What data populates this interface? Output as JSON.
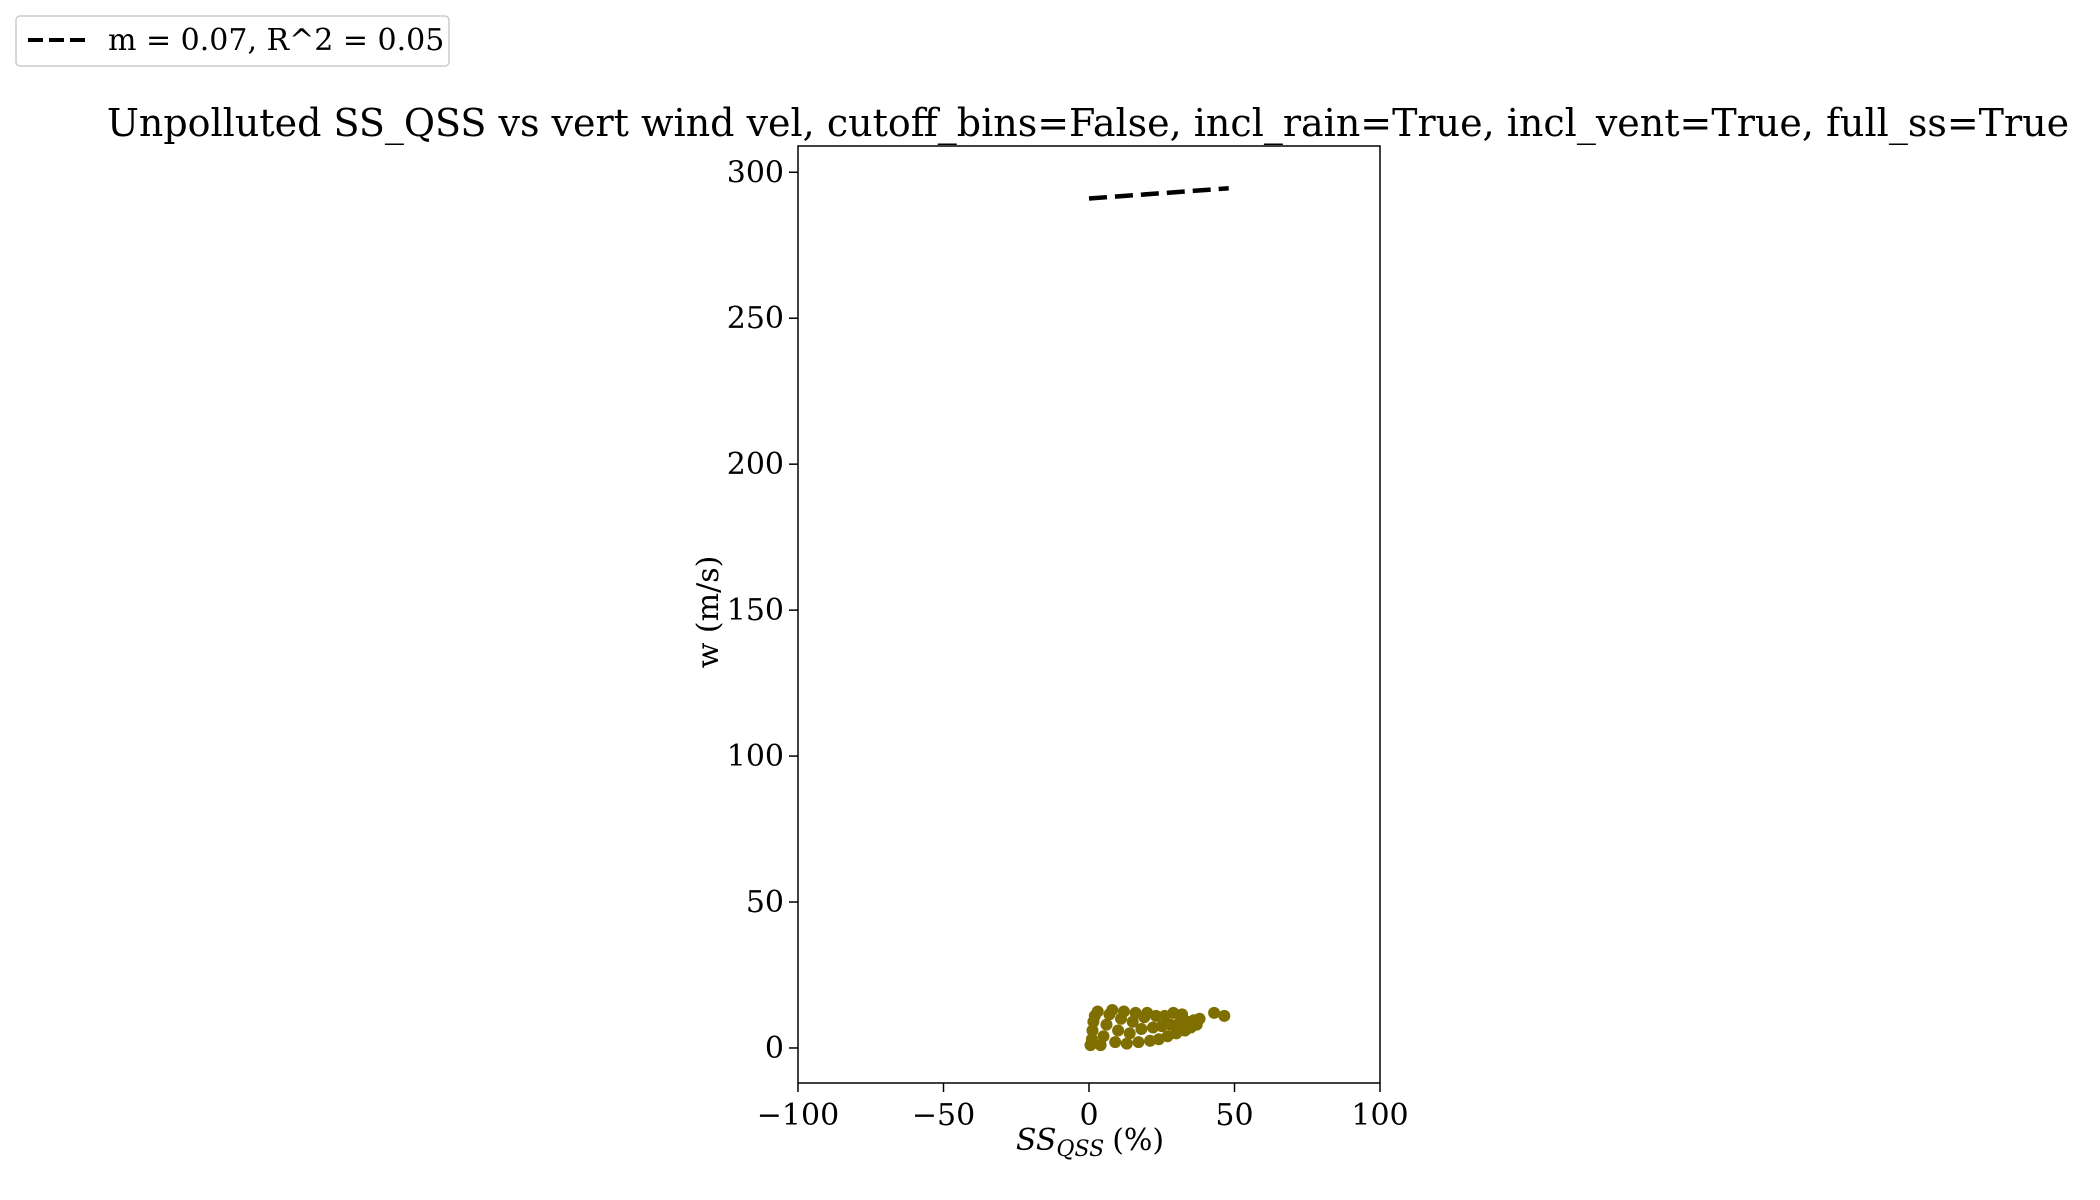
{
  "chart_data": {
    "type": "scatter",
    "title": "Unpolluted SS_QSS vs vert wind vel, cutoff_bins=False, incl_rain=True, incl_vent=True, full_ss=True",
    "xlabel_main": "SS",
    "xlabel_sub": "QSS",
    "xlabel_suffix": "(%)",
    "ylabel": "w (m/s)",
    "xlim": [
      -100,
      100
    ],
    "ylim": [
      -12,
      309
    ],
    "xticks": [
      -100,
      -50,
      0,
      50,
      100
    ],
    "xtick_labels": [
      "−100",
      "−50",
      "0",
      "50",
      "100"
    ],
    "yticks": [
      0,
      50,
      100,
      150,
      200,
      250,
      300
    ],
    "ytick_labels": [
      "0",
      "50",
      "100",
      "150",
      "200",
      "250",
      "300"
    ],
    "grid": false,
    "legend_position": "top-left",
    "scatter_color": "#7f6f00",
    "fit_line_color": "#000000",
    "series": [
      {
        "kind": "points",
        "points": [
          [
            0.5,
            1.0
          ],
          [
            1.0,
            3.0
          ],
          [
            1.2,
            6.0
          ],
          [
            1.5,
            9.0
          ],
          [
            2.0,
            11.0
          ],
          [
            3.0,
            12.5
          ],
          [
            4.0,
            1.0
          ],
          [
            5.0,
            4.0
          ],
          [
            6.0,
            8.0
          ],
          [
            7.0,
            11.5
          ],
          [
            8.0,
            13.0
          ],
          [
            9.0,
            2.0
          ],
          [
            10.0,
            6.0
          ],
          [
            11.0,
            10.0
          ],
          [
            12.0,
            12.5
          ],
          [
            13.0,
            1.5
          ],
          [
            14.0,
            5.0
          ],
          [
            15.0,
            9.0
          ],
          [
            16.0,
            12.0
          ],
          [
            17.0,
            2.0
          ],
          [
            18.0,
            6.5
          ],
          [
            19.0,
            10.5
          ],
          [
            20.0,
            12.0
          ],
          [
            21.0,
            2.5
          ],
          [
            22.0,
            7.0
          ],
          [
            23.0,
            11.0
          ],
          [
            24.0,
            3.0
          ],
          [
            25.0,
            7.5
          ],
          [
            26.0,
            11.0
          ],
          [
            27.0,
            4.0
          ],
          [
            28.0,
            8.0
          ],
          [
            29.0,
            12.0
          ],
          [
            30.0,
            5.0
          ],
          [
            31.0,
            8.5
          ],
          [
            32.0,
            11.5
          ],
          [
            33.0,
            6.0
          ],
          [
            34.0,
            9.0
          ],
          [
            35.0,
            7.0
          ],
          [
            36.0,
            9.5
          ],
          [
            37.0,
            8.0
          ],
          [
            38.0,
            10.0
          ],
          [
            43.0,
            12.0
          ],
          [
            46.5,
            11.0
          ]
        ]
      },
      {
        "name": "m = 0.07, R^2 = 0.05",
        "kind": "line",
        "x": [
          0,
          48
        ],
        "y": [
          291,
          294.5
        ],
        "dashed": true
      }
    ]
  }
}
